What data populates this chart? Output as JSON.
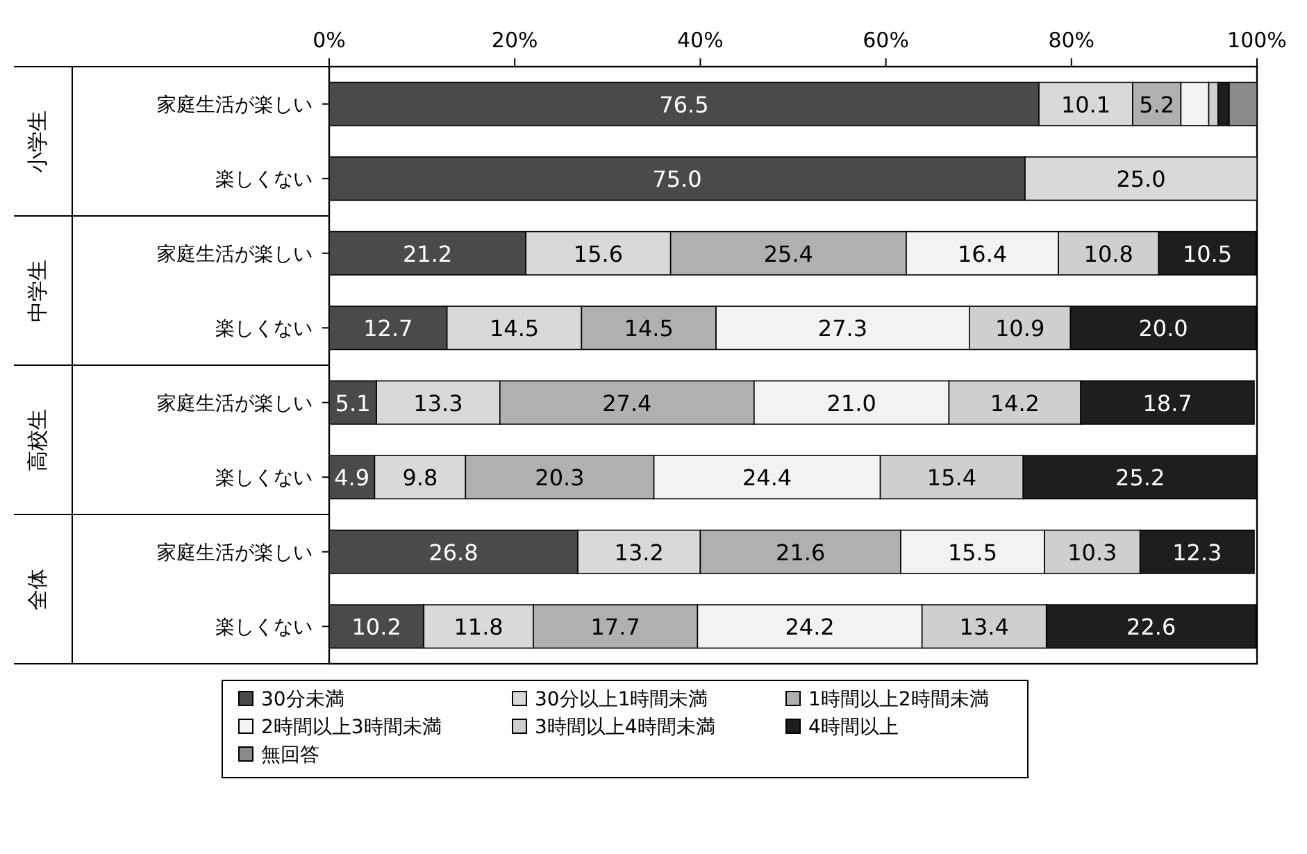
{
  "chart_data": {
    "type": "bar",
    "orientation": "horizontal",
    "stacked": true,
    "legend": "bottom",
    "categories": [
      "家庭生活が楽しい",
      "楽しくない",
      "家庭生活が楽しい",
      "楽しくない",
      "家庭生活が楽しい",
      "楽しくない",
      "家庭生活が楽しい",
      "楽しくない"
    ],
    "annotations": [
      "小学生",
      "中学生",
      "高校生",
      "全体"
    ],
    "xlim": [
      0,
      100
    ],
    "xticks": [
      {
        "value": 0,
        "label": "0%"
      },
      {
        "value": 20,
        "label": "20%"
      },
      {
        "value": 40,
        "label": "40%"
      },
      {
        "value": 60,
        "label": "60%"
      },
      {
        "value": 80,
        "label": "80%"
      },
      {
        "value": 100,
        "label": "100%"
      }
    ],
    "series": [
      {
        "name": "30分未満",
        "color": "#4a4a4a",
        "values": [
          76.5,
          75.0,
          21.2,
          12.7,
          5.1,
          4.9,
          26.8,
          10.2
        ],
        "value_labels": [
          "76.5",
          "75.0",
          "21.2",
          "12.7",
          "5.1",
          "4.9",
          "26.8",
          "10.2"
        ]
      },
      {
        "name": "30分以上1時間未満",
        "color": "#d9d9d9",
        "values": [
          10.1,
          25.0,
          15.6,
          14.5,
          13.3,
          9.8,
          13.2,
          11.8
        ],
        "value_labels": [
          "10.1",
          "25.0",
          "15.6",
          "14.5",
          "13.3",
          "9.8",
          "13.2",
          "11.8"
        ]
      },
      {
        "name": "1時間以上2時間未満",
        "color": "#b0b0b0",
        "values": [
          5.2,
          0,
          25.4,
          14.5,
          27.4,
          20.3,
          21.6,
          17.7
        ],
        "value_labels": [
          "5.2",
          null,
          "25.4",
          "14.5",
          "27.4",
          "20.3",
          "21.6",
          "17.7"
        ]
      },
      {
        "name": "2時間以上3時間未満",
        "color": "#f2f2f2",
        "values": [
          3.0,
          0,
          16.4,
          27.3,
          21.0,
          24.4,
          15.5,
          24.2
        ],
        "value_labels": [
          null,
          null,
          "16.4",
          "27.3",
          "21.0",
          "24.4",
          "15.5",
          "24.2"
        ]
      },
      {
        "name": "3時間以上4時間未満",
        "color": "#cfcfcf",
        "values": [
          1.0,
          0,
          10.8,
          10.9,
          14.2,
          15.4,
          10.3,
          13.4
        ],
        "value_labels": [
          null,
          null,
          "10.8",
          "10.9",
          "14.2",
          "15.4",
          "10.3",
          "13.4"
        ]
      },
      {
        "name": "4時間以上",
        "color": "#1e1e1e",
        "values": [
          1.2,
          0,
          10.5,
          20.0,
          18.7,
          25.2,
          12.3,
          22.6
        ],
        "value_labels": [
          null,
          null,
          "10.5",
          "20.0",
          "18.7",
          "25.2",
          "12.3",
          "22.6"
        ]
      },
      {
        "name": "無回答",
        "color": "#8a8a8a",
        "values": [
          3.0,
          0,
          0,
          0,
          0,
          0,
          0,
          0
        ],
        "value_labels": [
          null,
          null,
          null,
          null,
          null,
          null,
          null,
          null
        ]
      }
    ]
  }
}
